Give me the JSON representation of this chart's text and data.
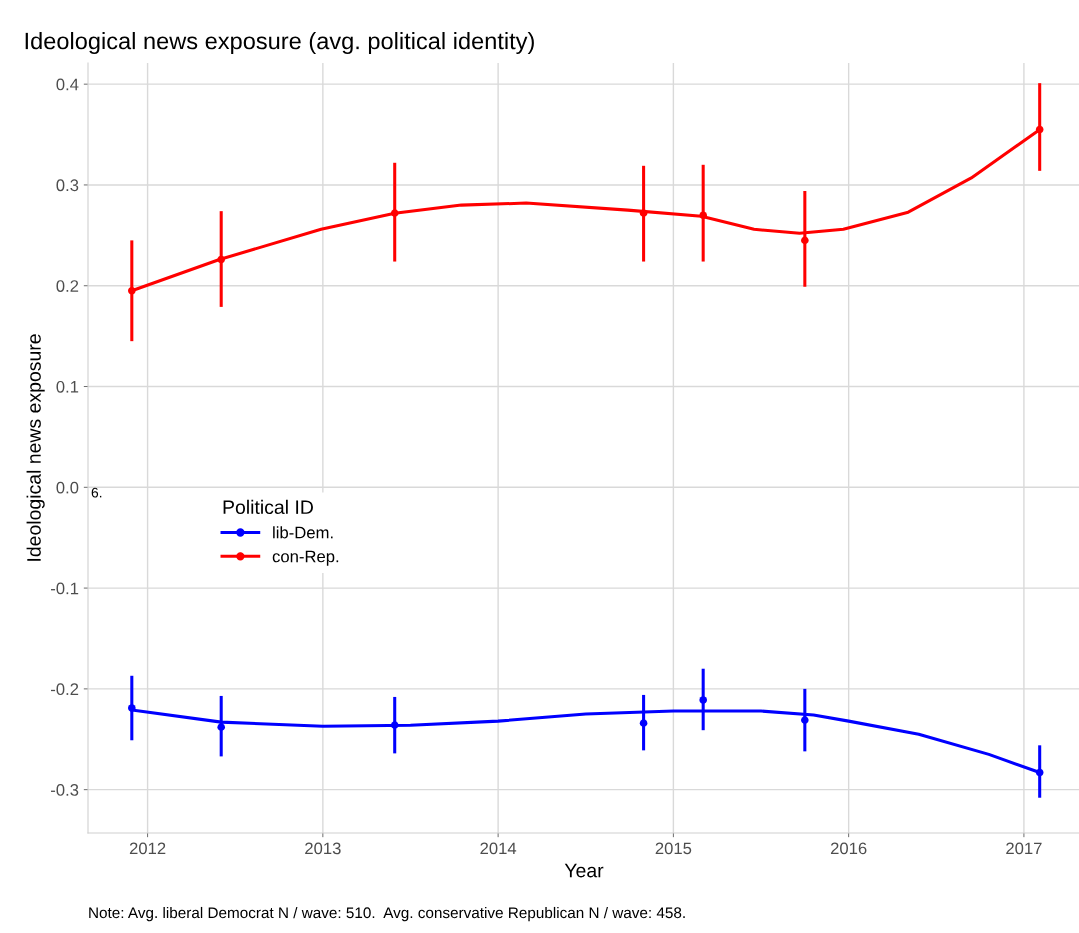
{
  "chart_data": {
    "type": "scatter",
    "title": "Ideological news exposure (avg. political identity)",
    "xlabel": "Year",
    "ylabel": "Ideological news exposure",
    "legend_title": "Political ID",
    "annotations": [
      "Note: Avg. liberal Democrat N / wave: 510.  Avg. conservative Republican N / wave: 458.",
      "6."
    ],
    "xlim": [
      2011.66,
      2017.32
    ],
    "xticks": [
      2012,
      2013,
      2014,
      2015,
      2016,
      2017
    ],
    "ylim": [
      -0.343,
      0.421
    ],
    "yticks": [
      {
        "value": -0.3,
        "label": "-0.3"
      },
      {
        "value": -0.2,
        "label": "-0.2"
      },
      {
        "value": -0.1,
        "label": "-0.1"
      },
      {
        "value": 0,
        "label": "0.0"
      },
      {
        "value": 0.1,
        "label": "0.1"
      },
      {
        "value": 0.2,
        "label": "0.2"
      },
      {
        "value": 0.3,
        "label": "0.3"
      },
      {
        "value": 0.4,
        "label": "0.4"
      }
    ],
    "grid": true,
    "legend": "left",
    "series": [
      {
        "name": "lib-Dem.",
        "color": "#0000ff",
        "marker": "circle",
        "x": [
          2011.91,
          2012.42,
          2013.41,
          2014.83,
          2015.17,
          2015.75,
          2017.09
        ],
        "values": [
          -0.219,
          -0.238,
          -0.236,
          -0.234,
          -0.211,
          -0.231,
          -0.283
        ],
        "errors": [
          [
            -0.251,
            -0.187
          ],
          [
            -0.267,
            -0.207
          ],
          [
            -0.264,
            -0.208
          ],
          [
            -0.261,
            -0.206
          ],
          [
            -0.241,
            -0.18
          ],
          [
            -0.262,
            -0.2
          ],
          [
            -0.308,
            -0.256
          ]
        ]
      },
      {
        "color": "#0000ff",
        "type": "line",
        "marker": "none",
        "x": [
          2011.91,
          2012.42,
          2013.0,
          2013.5,
          2014.0,
          2014.5,
          2015.0,
          2015.5,
          2015.8,
          2016.0,
          2016.4,
          2016.8,
          2017.09
        ],
        "values": [
          -0.221,
          -0.233,
          -0.237,
          -0.236,
          -0.232,
          -0.225,
          -0.222,
          -0.222,
          -0.226,
          -0.232,
          -0.245,
          -0.265,
          -0.283
        ]
      },
      {
        "name": "con-Rep.",
        "color": "#ff0000",
        "marker": "circle",
        "x": [
          2011.91,
          2012.42,
          2013.41,
          2014.83,
          2015.17,
          2015.75,
          2017.09
        ],
        "values": [
          0.195,
          0.226,
          0.272,
          0.272,
          0.27,
          0.245,
          0.355
        ],
        "errors": [
          [
            0.145,
            0.245
          ],
          [
            0.179,
            0.274
          ],
          [
            0.224,
            0.322
          ],
          [
            0.224,
            0.319
          ],
          [
            0.224,
            0.32
          ],
          [
            0.199,
            0.294
          ],
          [
            0.314,
            0.401
          ]
        ]
      },
      {
        "color": "#ff0000",
        "type": "line",
        "marker": "none",
        "x": [
          2011.91,
          2012.41,
          2012.99,
          2013.41,
          2013.79,
          2014.16,
          2014.74,
          2015.16,
          2015.46,
          2015.72,
          2015.97,
          2016.34,
          2016.7,
          2017.09
        ],
        "values": [
          0.195,
          0.226,
          0.256,
          0.272,
          0.28,
          0.282,
          0.275,
          0.269,
          0.256,
          0.252,
          0.256,
          0.273,
          0.307,
          0.355
        ]
      }
    ]
  }
}
